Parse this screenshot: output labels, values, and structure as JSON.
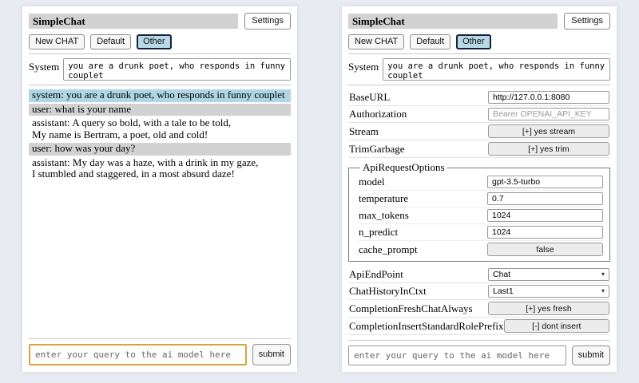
{
  "shared": {
    "title": "SimpleChat",
    "settings_label": "Settings",
    "sessions": {
      "new_chat": "New CHAT",
      "default": "Default",
      "other": "Other",
      "selected": "Other"
    },
    "system_label": "System",
    "system_prompt": "you are a drunk poet, who responds in funny couplet",
    "query_placeholder": "enter your query to the ai model here",
    "submit_label": "submit"
  },
  "chat_panel": {
    "messages": [
      {
        "role": "system",
        "text": "system: you are a drunk poet, who responds in funny couplet"
      },
      {
        "role": "user",
        "text": "user: what is your name"
      },
      {
        "role": "assistant",
        "text": "assistant: A query so bold, with a tale to be told,\nMy name is Bertram, a poet, old and cold!"
      },
      {
        "role": "user",
        "text": "user: how was your day?"
      },
      {
        "role": "assistant",
        "text": "assistant: My day was a haze, with a drink in my gaze,\nI stumbled and staggered, in a most absurd daze!"
      }
    ]
  },
  "settings_panel": {
    "fields_top": [
      {
        "label": "BaseURL",
        "control": "input",
        "value": "http://127.0.0.1:8080"
      },
      {
        "label": "Authorization",
        "control": "input",
        "placeholder": "Bearer OPENAI_API_KEY"
      },
      {
        "label": "Stream",
        "control": "button",
        "value": "[+] yes stream"
      },
      {
        "label": "TrimGarbage",
        "control": "button",
        "value": "[+] yes trim"
      }
    ],
    "api_request_options": {
      "legend": "ApiRequestOptions",
      "fields": [
        {
          "label": "model",
          "control": "input",
          "value": "gpt-3.5-turbo"
        },
        {
          "label": "temperature",
          "control": "input",
          "value": "0.7"
        },
        {
          "label": "max_tokens",
          "control": "input",
          "value": "1024"
        },
        {
          "label": "n_predict",
          "control": "input",
          "value": "1024"
        },
        {
          "label": "cache_prompt",
          "control": "button",
          "value": "false"
        }
      ]
    },
    "fields_bottom": [
      {
        "label": "ApiEndPoint",
        "control": "select",
        "value": "Chat"
      },
      {
        "label": "ChatHistoryInCtxt",
        "control": "select",
        "value": "Last1"
      },
      {
        "label": "CompletionFreshChatAlways",
        "control": "button",
        "value": "[+] yes fresh"
      },
      {
        "label": "CompletionInsertStandardRolePrefix",
        "control": "button",
        "value": "[-] dont insert"
      }
    ]
  },
  "icons": {
    "chevron_down": "▾"
  },
  "colors": {
    "page_background": "#e9ebf3",
    "panel_background": "#ffffff",
    "header_bar": "#d2d2d2",
    "system_message_bg": "#aed6e4",
    "user_message_bg": "#d2d2d2",
    "selected_session_bg": "#b9d8e5",
    "selected_session_border": "#16233d",
    "focused_input_border": "#dba33c"
  }
}
